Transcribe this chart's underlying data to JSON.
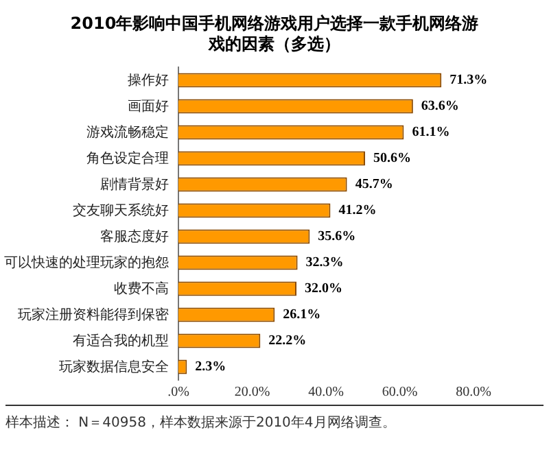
{
  "chart_data": {
    "type": "bar",
    "orientation": "horizontal",
    "title": "2010年影响中国手机网络游戏用户选择一款手机网络游戏的因素（多选）",
    "categories": [
      "操作好",
      "画面好",
      "游戏流畅稳定",
      "角色设定合理",
      "剧情背景好",
      "交友聊天系统好",
      "客服态度好",
      "可以快速的处理玩家的抱怨",
      "收费不高",
      "玩家注册资料能得到保密",
      "有适合我的机型",
      "玩家数据信息安全"
    ],
    "values": [
      71.3,
      63.6,
      61.1,
      50.6,
      45.7,
      41.2,
      35.6,
      32.3,
      32.0,
      26.1,
      22.2,
      2.3
    ],
    "value_labels": [
      "71.3%",
      "63.6%",
      "61.1%",
      "50.6%",
      "45.7%",
      "41.2%",
      "35.6%",
      "32.3%",
      "32.0%",
      "26.1%",
      "22.2%",
      "2.3%"
    ],
    "color": "#ff9900",
    "xlim": [
      0,
      80
    ],
    "xticks": [
      {
        "value": 0,
        "label": ".0%"
      },
      {
        "value": 20,
        "label": "20.0%"
      },
      {
        "value": 40,
        "label": "40.0%"
      },
      {
        "value": 60,
        "label": "60.0%"
      },
      {
        "value": 80,
        "label": "80.0%"
      }
    ],
    "grid": false,
    "annotations": [
      "样本描述： N＝40958，样本数据来源于2010年4月网络调查。"
    ]
  }
}
